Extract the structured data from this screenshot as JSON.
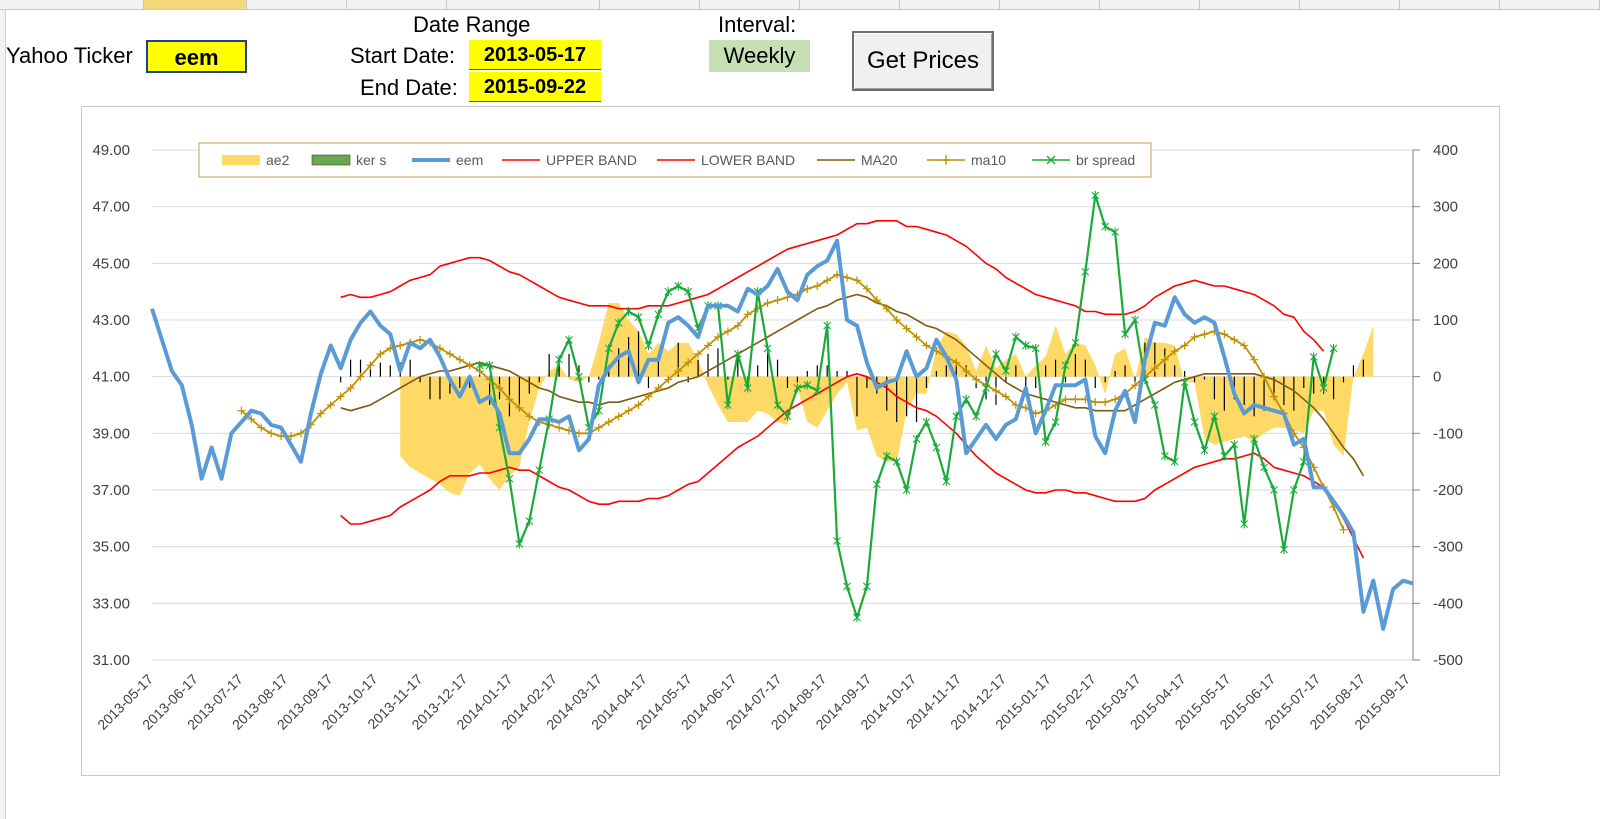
{
  "controls": {
    "ticker_label": "Yahoo Ticker",
    "ticker_value": "eem",
    "date_range_label": "Date Range",
    "start_label": "Start Date:",
    "start_value": "2013-05-17",
    "end_label": "End Date:",
    "end_value": "2015-09-22",
    "interval_label": "Interval:",
    "interval_value": "Weekly",
    "button_label": "Get Prices"
  },
  "colors": {
    "ae2": "#ffd966",
    "ker_s": "#6aa84f",
    "eem": "#5b9bd5",
    "upper_band": "#ff0000",
    "lower_band": "#ff0000",
    "ma20": "#7f5a12",
    "ma10": "#bf9000",
    "br_spread": "#1aaa3a",
    "cell_yellow": "#ffff00",
    "interval_green": "#c6e0b4"
  },
  "chart_data": {
    "type": "line",
    "title": "",
    "y_left": {
      "min": 31,
      "max": 49,
      "ticks": [
        "31.00",
        "33.00",
        "35.00",
        "37.00",
        "39.00",
        "41.00",
        "43.00",
        "45.00",
        "47.00",
        "49.00"
      ]
    },
    "y_right": {
      "min": -500,
      "max": 400,
      "ticks": [
        "-500",
        "-400",
        "-300",
        "-200",
        "-100",
        "0",
        "100",
        "200",
        "300",
        "400"
      ]
    },
    "x_tick_labels": [
      "2013-05-17",
      "2013-06-17",
      "2013-07-17",
      "2013-08-17",
      "2013-09-17",
      "2013-10-17",
      "2013-11-17",
      "2013-12-17",
      "2014-01-17",
      "2014-02-17",
      "2014-03-17",
      "2014-04-17",
      "2014-05-17",
      "2014-06-17",
      "2014-07-17",
      "2014-08-17",
      "2014-09-17",
      "2014-10-17",
      "2014-11-17",
      "2014-12-17",
      "2015-01-17",
      "2015-02-17",
      "2015-03-17",
      "2015-04-17",
      "2015-05-17",
      "2015-06-17",
      "2015-07-17",
      "2015-08-17",
      "2015-09-17"
    ],
    "legend": [
      "ae2",
      "ker s",
      "eem",
      "UPPER BAND",
      "LOWER BAND",
      "MA20",
      "ma10",
      "br spread"
    ],
    "legend_position": "top",
    "series": [
      {
        "name": "eem",
        "axis": "left",
        "values": [
          43.4,
          42.3,
          41.2,
          40.7,
          39.3,
          37.4,
          38.5,
          37.4,
          39.0,
          39.4,
          39.8,
          39.7,
          39.3,
          39.2,
          38.6,
          38.0,
          39.7,
          41.1,
          42.1,
          41.3,
          42.3,
          42.9,
          43.3,
          42.8,
          42.5,
          41.2,
          42.2,
          42.0,
          42.3,
          41.7,
          40.9,
          40.3,
          41.0,
          40.1,
          40.3,
          39.7,
          38.3,
          38.3,
          38.8,
          39.5,
          39.5,
          39.4,
          39.6,
          38.4,
          38.8,
          40.7,
          41.3,
          41.7,
          41.9,
          40.8,
          41.6,
          41.6,
          42.9,
          43.1,
          42.8,
          42.4,
          43.5,
          43.5,
          43.5,
          43.3,
          44.1,
          43.9,
          44.2,
          44.8,
          44.0,
          43.7,
          44.6,
          44.9,
          45.1,
          45.8,
          43.0,
          42.8,
          41.5,
          40.6,
          40.8,
          40.9,
          41.9,
          41.0,
          41.3,
          42.3,
          41.7,
          40.9,
          38.3,
          38.8,
          39.3,
          38.8,
          39.3,
          39.5,
          40.6,
          39.0,
          39.8,
          40.7,
          40.7,
          40.7,
          40.9,
          38.9,
          38.3,
          39.8,
          40.5,
          39.4,
          41.6,
          42.9,
          42.8,
          43.8,
          43.2,
          42.9,
          43.1,
          42.9,
          41.7,
          40.4,
          39.7,
          40.0,
          39.9,
          39.8,
          39.7,
          38.6,
          38.8,
          37.1,
          37.1,
          36.6,
          36.1,
          35.5,
          32.7,
          33.8,
          32.1,
          33.5,
          33.8,
          33.7
        ]
      },
      {
        "name": "UPPER BAND",
        "axis": "left",
        "values": [
          null,
          null,
          null,
          null,
          null,
          null,
          null,
          null,
          null,
          null,
          null,
          null,
          null,
          null,
          null,
          null,
          null,
          null,
          null,
          43.8,
          43.9,
          43.8,
          43.8,
          43.9,
          44.0,
          44.2,
          44.4,
          44.5,
          44.6,
          44.9,
          45.0,
          45.1,
          45.2,
          45.2,
          45.1,
          44.9,
          44.7,
          44.6,
          44.4,
          44.2,
          44.0,
          43.8,
          43.7,
          43.6,
          43.5,
          43.5,
          43.5,
          43.4,
          43.4,
          43.4,
          43.5,
          43.5,
          43.5,
          43.6,
          43.7,
          43.8,
          43.9,
          44.1,
          44.3,
          44.5,
          44.7,
          44.9,
          45.1,
          45.3,
          45.5,
          45.6,
          45.7,
          45.8,
          45.9,
          46.0,
          46.2,
          46.4,
          46.4,
          46.5,
          46.5,
          46.5,
          46.3,
          46.3,
          46.2,
          46.1,
          46.0,
          45.8,
          45.6,
          45.3,
          45.0,
          44.8,
          44.5,
          44.3,
          44.1,
          43.9,
          43.8,
          43.7,
          43.6,
          43.5,
          43.3,
          43.3,
          43.2,
          43.2,
          43.2,
          43.3,
          43.5,
          43.8,
          44.0,
          44.2,
          44.3,
          44.4,
          44.3,
          44.2,
          44.2,
          44.1,
          44.0,
          43.9,
          43.7,
          43.5,
          43.2,
          43.1,
          42.6,
          42.3,
          41.9
        ]
      },
      {
        "name": "LOWER BAND",
        "axis": "left",
        "values": [
          null,
          null,
          null,
          null,
          null,
          null,
          null,
          null,
          null,
          null,
          null,
          null,
          null,
          null,
          null,
          null,
          null,
          null,
          null,
          36.1,
          35.8,
          35.8,
          35.9,
          36.0,
          36.1,
          36.4,
          36.6,
          36.8,
          37.0,
          37.3,
          37.5,
          37.5,
          37.5,
          37.6,
          37.6,
          37.7,
          37.8,
          37.7,
          37.7,
          37.5,
          37.3,
          37.1,
          37.0,
          36.8,
          36.6,
          36.5,
          36.5,
          36.6,
          36.6,
          36.6,
          36.7,
          36.7,
          36.8,
          37.0,
          37.2,
          37.3,
          37.6,
          37.9,
          38.2,
          38.5,
          38.7,
          38.9,
          39.2,
          39.5,
          39.8,
          40.0,
          40.2,
          40.4,
          40.6,
          40.8,
          41.0,
          41.1,
          41.0,
          40.8,
          40.6,
          40.3,
          40.1,
          39.9,
          39.8,
          39.6,
          39.3,
          39.0,
          38.6,
          38.2,
          37.9,
          37.6,
          37.4,
          37.2,
          37.0,
          36.9,
          36.9,
          37.0,
          37.0,
          36.9,
          36.9,
          36.8,
          36.7,
          36.6,
          36.6,
          36.6,
          36.7,
          37.0,
          37.2,
          37.4,
          37.6,
          37.8,
          37.9,
          38.0,
          38.1,
          38.1,
          38.2,
          38.3,
          38.1,
          37.8,
          37.7,
          37.6,
          37.5,
          37.3,
          37.1,
          36.6,
          36.0,
          35.3,
          34.6
        ]
      },
      {
        "name": "MA20",
        "axis": "left",
        "values": [
          null,
          null,
          null,
          null,
          null,
          null,
          null,
          null,
          null,
          null,
          null,
          null,
          null,
          null,
          null,
          null,
          null,
          null,
          null,
          39.9,
          39.8,
          39.9,
          40.0,
          40.2,
          40.4,
          40.6,
          40.8,
          41.0,
          41.1,
          41.2,
          41.2,
          41.3,
          41.4,
          41.5,
          41.4,
          41.3,
          41.2,
          41.0,
          40.8,
          40.6,
          40.5,
          40.3,
          40.2,
          40.1,
          40.1,
          40.0,
          40.1,
          40.1,
          40.2,
          40.3,
          40.4,
          40.5,
          40.6,
          40.8,
          40.9,
          41.0,
          41.2,
          41.4,
          41.6,
          41.8,
          42.0,
          42.2,
          42.4,
          42.6,
          42.8,
          43.0,
          43.2,
          43.4,
          43.5,
          43.7,
          43.8,
          43.9,
          43.8,
          43.6,
          43.5,
          43.3,
          43.2,
          43.0,
          42.8,
          42.7,
          42.5,
          42.3,
          42.0,
          41.7,
          41.4,
          41.1,
          40.8,
          40.6,
          40.4,
          40.3,
          40.2,
          40.1,
          40.0,
          39.9,
          39.9,
          39.8,
          39.8,
          39.8,
          39.8,
          40.0,
          40.2,
          40.4,
          40.6,
          40.8,
          40.9,
          41.0,
          41.1,
          41.1,
          41.1,
          41.1,
          41.1,
          41.1,
          41.0,
          40.9,
          40.7,
          40.5,
          40.2,
          39.9,
          39.5,
          39.0,
          38.5,
          38.1,
          37.5
        ]
      },
      {
        "name": "ma10",
        "axis": "left",
        "values": [
          null,
          null,
          null,
          null,
          null,
          null,
          null,
          null,
          null,
          39.8,
          39.5,
          39.2,
          39.0,
          38.9,
          38.9,
          39.0,
          39.3,
          39.7,
          40.0,
          40.3,
          40.6,
          41.0,
          41.4,
          41.8,
          42.0,
          42.1,
          42.2,
          42.3,
          42.2,
          42.0,
          41.8,
          41.6,
          41.4,
          41.2,
          40.9,
          40.6,
          40.2,
          39.9,
          39.6,
          39.4,
          39.3,
          39.2,
          39.1,
          39.0,
          39.0,
          39.2,
          39.4,
          39.6,
          39.8,
          40.0,
          40.3,
          40.6,
          40.9,
          41.2,
          41.5,
          41.8,
          42.1,
          42.4,
          42.6,
          42.8,
          43.2,
          43.4,
          43.6,
          43.7,
          43.8,
          43.9,
          44.1,
          44.2,
          44.4,
          44.6,
          44.5,
          44.4,
          44.1,
          43.7,
          43.4,
          43.0,
          42.7,
          42.4,
          42.1,
          41.9,
          41.7,
          41.5,
          41.2,
          40.9,
          40.7,
          40.5,
          40.3,
          40.0,
          39.9,
          39.7,
          39.8,
          40.0,
          40.2,
          40.2,
          40.2,
          40.1,
          40.1,
          40.2,
          40.4,
          40.7,
          41.0,
          41.3,
          41.6,
          41.9,
          42.1,
          42.4,
          42.5,
          42.6,
          42.5,
          42.3,
          42.1,
          41.6,
          41.0,
          40.3,
          39.7,
          39.0,
          38.5,
          37.8,
          37.1,
          36.4,
          35.6
        ]
      },
      {
        "name": "br spread",
        "axis": "right",
        "values": [
          null,
          null,
          null,
          null,
          null,
          null,
          null,
          null,
          null,
          null,
          null,
          null,
          null,
          null,
          null,
          null,
          null,
          null,
          null,
          null,
          null,
          null,
          null,
          null,
          null,
          null,
          null,
          null,
          null,
          null,
          null,
          null,
          null,
          20,
          20,
          -90,
          -180,
          -295,
          -255,
          -165,
          -75,
          30,
          65,
          0,
          -90,
          -60,
          50,
          95,
          115,
          105,
          55,
          110,
          150,
          160,
          150,
          85,
          125,
          125,
          -50,
          40,
          -20,
          150,
          50,
          -50,
          -70,
          -20,
          -15,
          -25,
          90,
          -290,
          -370,
          -425,
          -370,
          -190,
          -140,
          -150,
          -200,
          -110,
          -80,
          -125,
          -185,
          -70,
          -40,
          -70,
          -20,
          40,
          10,
          70,
          55,
          50,
          -115,
          -80,
          20,
          60,
          185,
          320,
          265,
          255,
          75,
          100,
          -5,
          -50,
          -140,
          -150,
          -10,
          -80,
          -130,
          -70,
          -140,
          -120,
          -260,
          -110,
          -160,
          -200,
          -305,
          -200,
          -150,
          35,
          -20,
          50
        ]
      },
      {
        "name": "ae2",
        "axis": "right",
        "values": [
          null,
          null,
          null,
          null,
          null,
          null,
          null,
          null,
          null,
          null,
          null,
          null,
          null,
          null,
          null,
          null,
          null,
          null,
          null,
          null,
          null,
          null,
          null,
          null,
          null,
          -140,
          -160,
          -170,
          -180,
          -190,
          -205,
          -210,
          -170,
          -155,
          -180,
          -200,
          -175,
          -160,
          -80,
          -20,
          10,
          20,
          -5,
          -10,
          0,
          60,
          130,
          130,
          100,
          80,
          40,
          60,
          45,
          60,
          60,
          30,
          -15,
          -50,
          -80,
          -80,
          -80,
          -60,
          -65,
          -80,
          -85,
          -20,
          -80,
          -90,
          -60,
          -30,
          -10,
          -95,
          -90,
          -140,
          -150,
          -150,
          -60,
          -30,
          -30,
          50,
          80,
          75,
          55,
          10,
          55,
          15,
          30,
          40,
          0,
          20,
          35,
          90,
          40,
          60,
          55,
          20,
          -30,
          40,
          50,
          -5,
          70,
          60,
          60,
          55,
          -10,
          -10,
          -110,
          -120,
          -115,
          -110,
          -105,
          -115,
          -100,
          -90,
          -90,
          -95,
          -100,
          -60,
          -60,
          -120,
          -140,
          0,
          40,
          90
        ]
      },
      {
        "name": "ker s",
        "axis": "right",
        "values": [
          null,
          null,
          null,
          null,
          null,
          null,
          null,
          null,
          null,
          null,
          null,
          null,
          null,
          null,
          null,
          null,
          null,
          null,
          null,
          -10,
          30,
          30,
          25,
          25,
          20,
          25,
          30,
          -10,
          -40,
          -40,
          -30,
          -20,
          -20,
          25,
          -50,
          -40,
          -70,
          -60,
          -30,
          -10,
          40,
          30,
          40,
          20,
          -10,
          -5,
          20,
          50,
          70,
          80,
          -20,
          40,
          -10,
          60,
          -10,
          30,
          40,
          50,
          -5,
          40,
          -10,
          20,
          50,
          30,
          -20,
          -10,
          10,
          20,
          20,
          10,
          10,
          -70,
          -20,
          -30,
          -60,
          -80,
          -70,
          -80,
          -20,
          10,
          20,
          30,
          20,
          -20,
          -40,
          -50,
          -10,
          20,
          -30,
          -20,
          20,
          30,
          -10,
          40,
          30,
          -20,
          -10,
          10,
          20,
          -10,
          60,
          60,
          50,
          20,
          10,
          -10,
          -5,
          -40,
          -60,
          -40,
          -50,
          -70,
          -60,
          -40,
          -50,
          -60,
          -20,
          -30,
          -30,
          -40,
          -10,
          20,
          30
        ]
      }
    ]
  }
}
